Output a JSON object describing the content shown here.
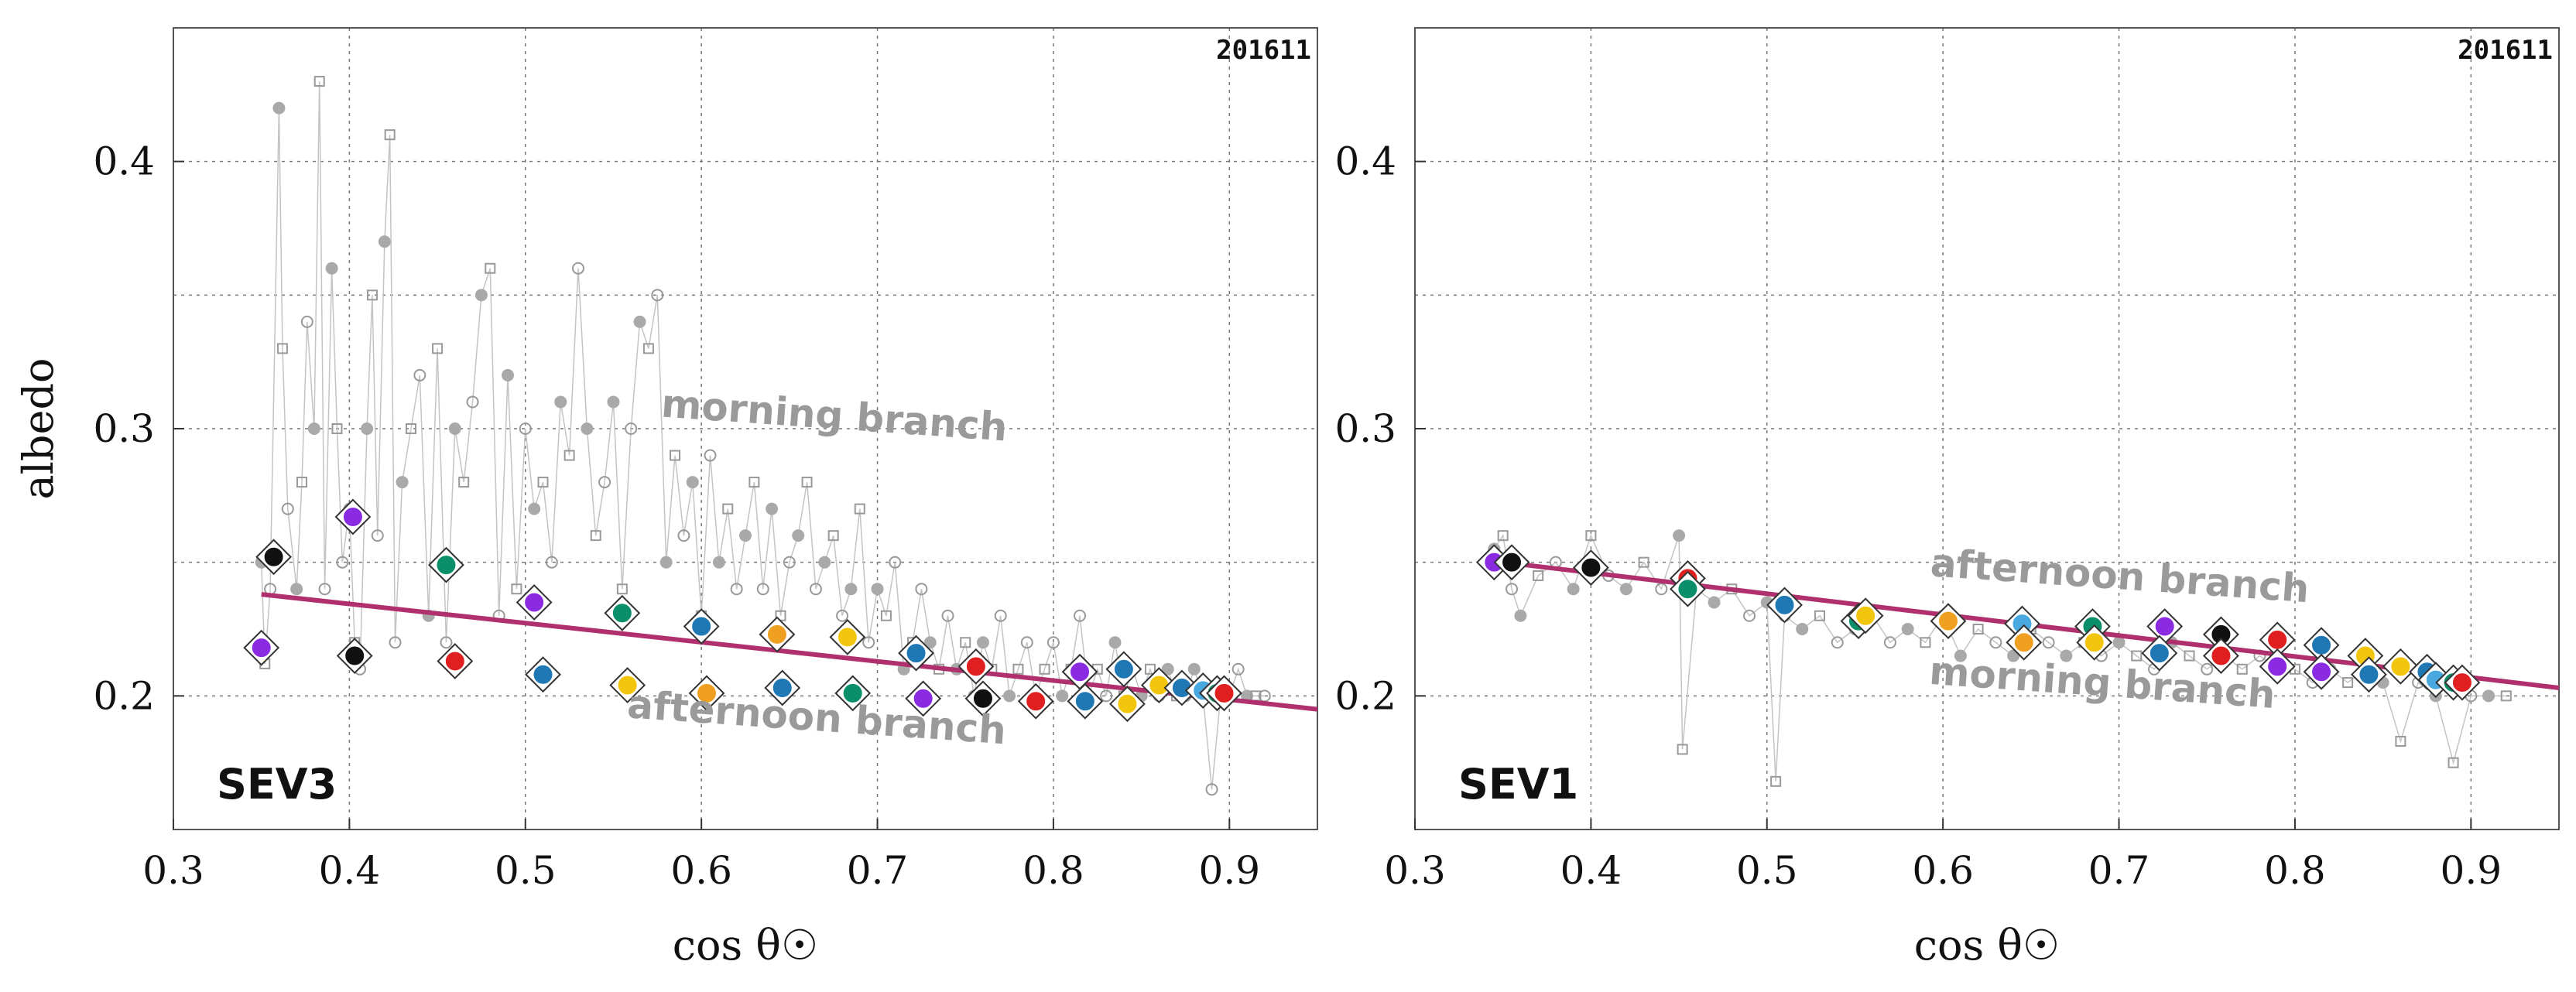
{
  "chart_data": [
    {
      "type": "scatter",
      "panel_label": "SEV3",
      "corner_tag": "201611",
      "xlabel": "cos θ☉",
      "ylabel": "albedo",
      "xlim": [
        0.3,
        0.95
      ],
      "ylim": [
        0.15,
        0.45
      ],
      "xticks": [
        "0.3",
        "0.4",
        "0.5",
        "0.6",
        "0.7",
        "0.8",
        "0.9"
      ],
      "yticks": [
        "0.2",
        "0.3",
        "0.4"
      ],
      "grid": true,
      "annotations": [
        {
          "text": "morning branch",
          "x": 0.675,
          "y": 0.3,
          "rotation": 4
        },
        {
          "text": "afternoon branch",
          "x": 0.665,
          "y": 0.187,
          "rotation": 4
        }
      ],
      "fit_line": {
        "color": "#b0306e",
        "x": [
          0.35,
          0.95
        ],
        "y": [
          0.238,
          0.195
        ]
      },
      "scatter_points": [
        [
          0.35,
          0.25
        ],
        [
          0.352,
          0.212
        ],
        [
          0.355,
          0.24
        ],
        [
          0.36,
          0.42
        ],
        [
          0.362,
          0.33
        ],
        [
          0.365,
          0.27
        ],
        [
          0.37,
          0.24
        ],
        [
          0.373,
          0.28
        ],
        [
          0.376,
          0.34
        ],
        [
          0.38,
          0.3
        ],
        [
          0.383,
          0.43
        ],
        [
          0.386,
          0.24
        ],
        [
          0.39,
          0.36
        ],
        [
          0.393,
          0.3
        ],
        [
          0.396,
          0.25
        ],
        [
          0.4,
          0.27
        ],
        [
          0.403,
          0.22
        ],
        [
          0.406,
          0.21
        ],
        [
          0.41,
          0.3
        ],
        [
          0.413,
          0.35
        ],
        [
          0.416,
          0.26
        ],
        [
          0.42,
          0.37
        ],
        [
          0.423,
          0.41
        ],
        [
          0.426,
          0.22
        ],
        [
          0.43,
          0.28
        ],
        [
          0.435,
          0.3
        ],
        [
          0.44,
          0.32
        ],
        [
          0.445,
          0.23
        ],
        [
          0.45,
          0.33
        ],
        [
          0.455,
          0.22
        ],
        [
          0.46,
          0.3
        ],
        [
          0.465,
          0.28
        ],
        [
          0.47,
          0.31
        ],
        [
          0.475,
          0.35
        ],
        [
          0.48,
          0.36
        ],
        [
          0.485,
          0.23
        ],
        [
          0.49,
          0.32
        ],
        [
          0.495,
          0.24
        ],
        [
          0.5,
          0.3
        ],
        [
          0.505,
          0.27
        ],
        [
          0.51,
          0.28
        ],
        [
          0.515,
          0.25
        ],
        [
          0.52,
          0.31
        ],
        [
          0.525,
          0.29
        ],
        [
          0.53,
          0.36
        ],
        [
          0.535,
          0.3
        ],
        [
          0.54,
          0.26
        ],
        [
          0.545,
          0.28
        ],
        [
          0.55,
          0.31
        ],
        [
          0.555,
          0.24
        ],
        [
          0.56,
          0.3
        ],
        [
          0.565,
          0.34
        ],
        [
          0.57,
          0.33
        ],
        [
          0.575,
          0.35
        ],
        [
          0.58,
          0.25
        ],
        [
          0.585,
          0.29
        ],
        [
          0.59,
          0.26
        ],
        [
          0.595,
          0.28
        ],
        [
          0.6,
          0.23
        ],
        [
          0.605,
          0.29
        ],
        [
          0.61,
          0.25
        ],
        [
          0.615,
          0.27
        ],
        [
          0.62,
          0.24
        ],
        [
          0.625,
          0.26
        ],
        [
          0.63,
          0.28
        ],
        [
          0.635,
          0.24
        ],
        [
          0.64,
          0.27
        ],
        [
          0.645,
          0.23
        ],
        [
          0.65,
          0.25
        ],
        [
          0.655,
          0.26
        ],
        [
          0.66,
          0.28
        ],
        [
          0.665,
          0.24
        ],
        [
          0.67,
          0.25
        ],
        [
          0.675,
          0.26
        ],
        [
          0.68,
          0.23
        ],
        [
          0.685,
          0.24
        ],
        [
          0.69,
          0.27
        ],
        [
          0.695,
          0.22
        ],
        [
          0.7,
          0.24
        ],
        [
          0.705,
          0.23
        ],
        [
          0.71,
          0.25
        ],
        [
          0.715,
          0.21
        ],
        [
          0.72,
          0.22
        ],
        [
          0.725,
          0.24
        ],
        [
          0.73,
          0.22
        ],
        [
          0.735,
          0.21
        ],
        [
          0.74,
          0.23
        ],
        [
          0.745,
          0.21
        ],
        [
          0.75,
          0.22
        ],
        [
          0.755,
          0.2
        ],
        [
          0.76,
          0.22
        ],
        [
          0.765,
          0.21
        ],
        [
          0.77,
          0.23
        ],
        [
          0.775,
          0.2
        ],
        [
          0.78,
          0.21
        ],
        [
          0.785,
          0.22
        ],
        [
          0.79,
          0.2
        ],
        [
          0.795,
          0.21
        ],
        [
          0.8,
          0.22
        ],
        [
          0.805,
          0.2
        ],
        [
          0.81,
          0.21
        ],
        [
          0.815,
          0.23
        ],
        [
          0.82,
          0.2
        ],
        [
          0.825,
          0.21
        ],
        [
          0.83,
          0.2
        ],
        [
          0.835,
          0.22
        ],
        [
          0.84,
          0.2
        ],
        [
          0.845,
          0.21
        ],
        [
          0.85,
          0.2
        ],
        [
          0.855,
          0.21
        ],
        [
          0.86,
          0.2
        ],
        [
          0.865,
          0.21
        ],
        [
          0.87,
          0.2
        ],
        [
          0.875,
          0.2
        ],
        [
          0.88,
          0.21
        ],
        [
          0.885,
          0.2
        ],
        [
          0.89,
          0.165
        ],
        [
          0.895,
          0.2
        ],
        [
          0.9,
          0.2
        ],
        [
          0.905,
          0.21
        ],
        [
          0.91,
          0.2
        ],
        [
          0.915,
          0.2
        ],
        [
          0.92,
          0.2
        ]
      ],
      "highlight_markers": [
        {
          "x": 0.357,
          "y": 0.252,
          "color": "#111111"
        },
        {
          "x": 0.35,
          "y": 0.218,
          "color": "#8a2be2"
        },
        {
          "x": 0.402,
          "y": 0.267,
          "color": "#8a2be2"
        },
        {
          "x": 0.403,
          "y": 0.215,
          "color": "#111111"
        },
        {
          "x": 0.455,
          "y": 0.249,
          "color": "#0a8f6a"
        },
        {
          "x": 0.46,
          "y": 0.213,
          "color": "#e02020"
        },
        {
          "x": 0.505,
          "y": 0.235,
          "color": "#8a2be2"
        },
        {
          "x": 0.51,
          "y": 0.208,
          "color": "#1f77b4"
        },
        {
          "x": 0.555,
          "y": 0.231,
          "color": "#0a8f6a"
        },
        {
          "x": 0.558,
          "y": 0.204,
          "color": "#f2c60c"
        },
        {
          "x": 0.6,
          "y": 0.226,
          "color": "#1f77b4"
        },
        {
          "x": 0.603,
          "y": 0.201,
          "color": "#f0a020"
        },
        {
          "x": 0.643,
          "y": 0.223,
          "color": "#f0a020"
        },
        {
          "x": 0.646,
          "y": 0.203,
          "color": "#1f77b4"
        },
        {
          "x": 0.683,
          "y": 0.222,
          "color": "#f2c60c"
        },
        {
          "x": 0.686,
          "y": 0.201,
          "color": "#0a8f6a"
        },
        {
          "x": 0.722,
          "y": 0.216,
          "color": "#1f77b4"
        },
        {
          "x": 0.726,
          "y": 0.199,
          "color": "#8a2be2"
        },
        {
          "x": 0.756,
          "y": 0.211,
          "color": "#e02020"
        },
        {
          "x": 0.76,
          "y": 0.199,
          "color": "#111111"
        },
        {
          "x": 0.79,
          "y": 0.198,
          "color": "#e02020"
        },
        {
          "x": 0.815,
          "y": 0.209,
          "color": "#8a2be2"
        },
        {
          "x": 0.818,
          "y": 0.198,
          "color": "#1f77b4"
        },
        {
          "x": 0.84,
          "y": 0.21,
          "color": "#1f77b4"
        },
        {
          "x": 0.842,
          "y": 0.197,
          "color": "#f2c60c"
        },
        {
          "x": 0.86,
          "y": 0.204,
          "color": "#f2c60c"
        },
        {
          "x": 0.873,
          "y": 0.203,
          "color": "#1f77b4"
        },
        {
          "x": 0.885,
          "y": 0.202,
          "color": "#4aa8e0"
        },
        {
          "x": 0.893,
          "y": 0.201,
          "color": "#0a8f6a"
        },
        {
          "x": 0.897,
          "y": 0.201,
          "color": "#e02020"
        }
      ]
    },
    {
      "type": "scatter",
      "panel_label": "SEV1",
      "corner_tag": "201611",
      "xlabel": "cos θ☉",
      "ylabel": "",
      "xlim": [
        0.3,
        0.95
      ],
      "ylim": [
        0.15,
        0.45
      ],
      "xticks": [
        "0.3",
        "0.4",
        "0.5",
        "0.6",
        "0.7",
        "0.8",
        "0.9"
      ],
      "yticks": [
        "0.2",
        "0.3",
        "0.4"
      ],
      "grid": true,
      "annotations": [
        {
          "text": "afternoon branch",
          "x": 0.7,
          "y": 0.24,
          "rotation": 4
        },
        {
          "text": "morning branch",
          "x": 0.69,
          "y": 0.2,
          "rotation": 4
        }
      ],
      "fit_line": {
        "color": "#b0306e",
        "x": [
          0.35,
          0.95
        ],
        "y": [
          0.25,
          0.203
        ]
      },
      "scatter_points": [
        [
          0.345,
          0.255
        ],
        [
          0.35,
          0.26
        ],
        [
          0.355,
          0.24
        ],
        [
          0.36,
          0.23
        ],
        [
          0.37,
          0.245
        ],
        [
          0.38,
          0.25
        ],
        [
          0.39,
          0.24
        ],
        [
          0.4,
          0.26
        ],
        [
          0.41,
          0.245
        ],
        [
          0.42,
          0.24
        ],
        [
          0.43,
          0.25
        ],
        [
          0.44,
          0.24
        ],
        [
          0.45,
          0.26
        ],
        [
          0.452,
          0.18
        ],
        [
          0.46,
          0.24
        ],
        [
          0.47,
          0.235
        ],
        [
          0.48,
          0.24
        ],
        [
          0.49,
          0.23
        ],
        [
          0.5,
          0.235
        ],
        [
          0.505,
          0.168
        ],
        [
          0.51,
          0.23
        ],
        [
          0.52,
          0.225
        ],
        [
          0.53,
          0.23
        ],
        [
          0.54,
          0.22
        ],
        [
          0.55,
          0.225
        ],
        [
          0.56,
          0.23
        ],
        [
          0.57,
          0.22
        ],
        [
          0.58,
          0.225
        ],
        [
          0.59,
          0.22
        ],
        [
          0.6,
          0.23
        ],
        [
          0.61,
          0.215
        ],
        [
          0.62,
          0.225
        ],
        [
          0.63,
          0.22
        ],
        [
          0.64,
          0.215
        ],
        [
          0.65,
          0.225
        ],
        [
          0.66,
          0.22
        ],
        [
          0.67,
          0.215
        ],
        [
          0.68,
          0.22
        ],
        [
          0.69,
          0.215
        ],
        [
          0.7,
          0.22
        ],
        [
          0.71,
          0.215
        ],
        [
          0.72,
          0.21
        ],
        [
          0.73,
          0.22
        ],
        [
          0.74,
          0.215
        ],
        [
          0.75,
          0.21
        ],
        [
          0.76,
          0.215
        ],
        [
          0.77,
          0.21
        ],
        [
          0.78,
          0.215
        ],
        [
          0.79,
          0.21
        ],
        [
          0.8,
          0.21
        ],
        [
          0.81,
          0.205
        ],
        [
          0.82,
          0.21
        ],
        [
          0.83,
          0.205
        ],
        [
          0.84,
          0.21
        ],
        [
          0.85,
          0.205
        ],
        [
          0.86,
          0.183
        ],
        [
          0.87,
          0.205
        ],
        [
          0.88,
          0.2
        ],
        [
          0.89,
          0.175
        ],
        [
          0.9,
          0.2
        ],
        [
          0.91,
          0.2
        ],
        [
          0.92,
          0.2
        ]
      ],
      "highlight_markers": [
        {
          "x": 0.345,
          "y": 0.25,
          "color": "#8a2be2"
        },
        {
          "x": 0.355,
          "y": 0.25,
          "color": "#111111"
        },
        {
          "x": 0.4,
          "y": 0.248,
          "color": "#111111"
        },
        {
          "x": 0.455,
          "y": 0.244,
          "color": "#e02020"
        },
        {
          "x": 0.455,
          "y": 0.24,
          "color": "#0a8f6a"
        },
        {
          "x": 0.51,
          "y": 0.234,
          "color": "#1f77b4"
        },
        {
          "x": 0.552,
          "y": 0.228,
          "color": "#0a8f6a"
        },
        {
          "x": 0.556,
          "y": 0.23,
          "color": "#f2c60c"
        },
        {
          "x": 0.603,
          "y": 0.228,
          "color": "#f0a020"
        },
        {
          "x": 0.645,
          "y": 0.227,
          "color": "#4aa8e0"
        },
        {
          "x": 0.646,
          "y": 0.22,
          "color": "#f0a020"
        },
        {
          "x": 0.685,
          "y": 0.226,
          "color": "#0a8f6a"
        },
        {
          "x": 0.686,
          "y": 0.22,
          "color": "#f2c60c"
        },
        {
          "x": 0.726,
          "y": 0.226,
          "color": "#8a2be2"
        },
        {
          "x": 0.723,
          "y": 0.216,
          "color": "#1f77b4"
        },
        {
          "x": 0.758,
          "y": 0.223,
          "color": "#111111"
        },
        {
          "x": 0.758,
          "y": 0.215,
          "color": "#e02020"
        },
        {
          "x": 0.79,
          "y": 0.221,
          "color": "#e02020"
        },
        {
          "x": 0.79,
          "y": 0.211,
          "color": "#8a2be2"
        },
        {
          "x": 0.815,
          "y": 0.219,
          "color": "#1f77b4"
        },
        {
          "x": 0.815,
          "y": 0.209,
          "color": "#8a2be2"
        },
        {
          "x": 0.84,
          "y": 0.215,
          "color": "#f2c60c"
        },
        {
          "x": 0.842,
          "y": 0.208,
          "color": "#1f77b4"
        },
        {
          "x": 0.86,
          "y": 0.211,
          "color": "#f2c60c"
        },
        {
          "x": 0.875,
          "y": 0.209,
          "color": "#1f77b4"
        },
        {
          "x": 0.88,
          "y": 0.206,
          "color": "#4aa8e0"
        },
        {
          "x": 0.89,
          "y": 0.205,
          "color": "#0a8f6a"
        },
        {
          "x": 0.895,
          "y": 0.205,
          "color": "#e02020"
        }
      ]
    }
  ]
}
